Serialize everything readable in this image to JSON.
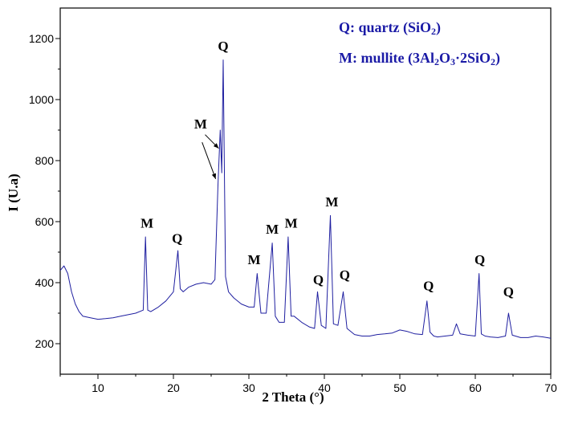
{
  "chart_data": {
    "type": "line",
    "xlabel": "2 Theta (°)",
    "ylabel": "I (U.a)",
    "xlim": [
      5,
      70
    ],
    "ylim": [
      100,
      1300
    ],
    "x_ticks": [
      10,
      20,
      30,
      40,
      50,
      60,
      70
    ],
    "y_ticks": [
      200,
      400,
      600,
      800,
      1000,
      1200
    ],
    "line_color": "#1f1fa0",
    "grid": false,
    "legend": {
      "placement": "top-right",
      "entries": [
        {
          "prefix": "Q: quartz (SiO",
          "sub1": "2",
          "suffix": ")"
        },
        {
          "prefix": "M: mullite (3Al",
          "sub1": "2",
          "mid1": "O",
          "sub2": "3",
          "mid2": "·2SiO",
          "sub3": "2",
          "suffix": ")"
        }
      ]
    },
    "series": [
      {
        "x": [
          5,
          5.5,
          6,
          6.5,
          7,
          7.5,
          8,
          9,
          10,
          11,
          12,
          13,
          14,
          15,
          16,
          16.3,
          16.6,
          17,
          18,
          19,
          20,
          20.6,
          20.9,
          21.3,
          22,
          23,
          24,
          25,
          25.5,
          25.9,
          26.2,
          26.4,
          26.6,
          26.9,
          27.3,
          28,
          29,
          30,
          30.7,
          31.1,
          31.6,
          32.3,
          33.1,
          33.5,
          34,
          34.7,
          35.2,
          35.6,
          36,
          37,
          38,
          38.7,
          39.1,
          39.6,
          40.2,
          40.8,
          41.2,
          41.8,
          42.5,
          43,
          44,
          45,
          46,
          47,
          48,
          49,
          50,
          51,
          52,
          53,
          53.6,
          54,
          54.5,
          55,
          56,
          57,
          57.5,
          58,
          59,
          60,
          60.5,
          60.8,
          61.3,
          62,
          63,
          64,
          64.4,
          64.9,
          66,
          67,
          68,
          69,
          70
        ],
        "y": [
          440,
          455,
          430,
          370,
          330,
          305,
          290,
          285,
          280,
          282,
          285,
          290,
          295,
          300,
          310,
          550,
          310,
          305,
          320,
          340,
          370,
          505,
          380,
          370,
          385,
          395,
          400,
          395,
          410,
          720,
          900,
          760,
          1130,
          420,
          370,
          350,
          330,
          320,
          320,
          430,
          300,
          300,
          530,
          290,
          270,
          270,
          550,
          290,
          290,
          270,
          255,
          250,
          370,
          260,
          250,
          620,
          265,
          260,
          370,
          250,
          230,
          225,
          225,
          230,
          232,
          235,
          245,
          240,
          232,
          230,
          340,
          238,
          225,
          222,
          225,
          228,
          265,
          232,
          228,
          225,
          430,
          232,
          225,
          222,
          220,
          225,
          300,
          228,
          220,
          220,
          225,
          222,
          218
        ]
      }
    ],
    "annotations": [
      {
        "text": "M",
        "x": 16.5,
        "y": 580
      },
      {
        "text": "Q",
        "x": 20.5,
        "y": 530
      },
      {
        "text": "M",
        "x": 23.6,
        "y": 905
      },
      {
        "text": "Q",
        "x": 26.6,
        "y": 1160
      },
      {
        "text": "M",
        "x": 30.7,
        "y": 460
      },
      {
        "text": "M",
        "x": 33.1,
        "y": 560
      },
      {
        "text": "M",
        "x": 35.6,
        "y": 580
      },
      {
        "text": "Q",
        "x": 39.2,
        "y": 395
      },
      {
        "text": "M",
        "x": 41.0,
        "y": 650
      },
      {
        "text": "Q",
        "x": 42.7,
        "y": 410
      },
      {
        "text": "Q",
        "x": 53.8,
        "y": 375
      },
      {
        "text": "Q",
        "x": 60.6,
        "y": 460
      },
      {
        "text": "Q",
        "x": 64.4,
        "y": 355
      }
    ],
    "arrows": [
      {
        "from": [
          23.8,
          860
        ],
        "to": [
          25.6,
          740
        ]
      },
      {
        "from": [
          24.2,
          885
        ],
        "to": [
          26.0,
          840
        ]
      }
    ]
  }
}
